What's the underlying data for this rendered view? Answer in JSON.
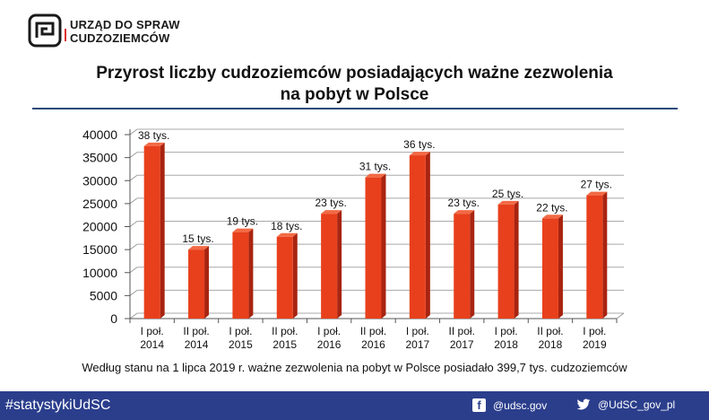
{
  "header": {
    "logo_line1": "URZĄD DO SPRAW",
    "logo_line2": "CUDZOZIEMCÓW",
    "title_line1": "Przyrost liczby cudzoziemców posiadających ważne zezwolenia",
    "title_line2": "na pobyt w Polsce"
  },
  "chart_data": {
    "type": "bar",
    "categories": [
      [
        "I poł.",
        "2014"
      ],
      [
        "II poł.",
        "2014"
      ],
      [
        "I poł.",
        "2015"
      ],
      [
        "II poł.",
        "2015"
      ],
      [
        "I poł.",
        "2016"
      ],
      [
        "II poł.",
        "2016"
      ],
      [
        "I poł.",
        "2017"
      ],
      [
        "II poł.",
        "2017"
      ],
      [
        "I poł.",
        "2018"
      ],
      [
        "II poł.",
        "2018"
      ],
      [
        "I poł.",
        "2019"
      ]
    ],
    "values": [
      37500,
      15000,
      18800,
      17800,
      22800,
      30700,
      35500,
      22800,
      24800,
      21800,
      26800
    ],
    "data_labels": [
      "38 tys.",
      "15 tys.",
      "19 tys.",
      "18 tys.",
      "23 tys.",
      "31 tys.",
      "36 tys.",
      "23 tys.",
      "25 tys.",
      "22 tys.",
      "27 tys."
    ],
    "yticks": [
      0,
      5000,
      10000,
      15000,
      20000,
      25000,
      30000,
      35000,
      40000
    ],
    "ylim": [
      0,
      40000
    ],
    "grid": true,
    "bar_color": "#e8401c",
    "title": "",
    "xlabel": "",
    "ylabel": ""
  },
  "note": "Według stanu na 1 lipca 2019 r. ważne zezwolenia na pobyt w Polsce posiadało 399,7 tys. cudzoziemców",
  "footer": {
    "hashtag": "#statystykiUdSC",
    "facebook": "@udsc.gov",
    "twitter": "@UdSC_gov_pl",
    "facebook_icon": "facebook-icon",
    "twitter_icon": "twitter-icon",
    "background": "#2b3e8c"
  }
}
